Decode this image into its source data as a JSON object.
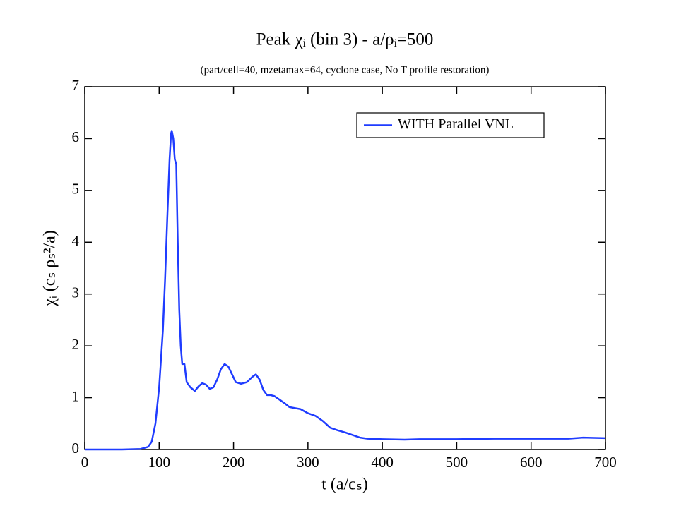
{
  "chart_data": {
    "type": "line",
    "title": "Peak χᵢ (bin 3) - a/ρᵢ=500",
    "subtitle": "(part/cell=40, mzetamax=64, cyclone case, No T profile restoration)",
    "x_label": "t (a/cₛ)",
    "y_label": "χᵢ (cₛ ρₛ²/a)",
    "x": [
      0,
      50,
      75,
      85,
      90,
      95,
      100,
      105,
      108,
      111,
      114,
      116,
      117,
      119,
      121,
      123,
      125,
      127,
      129,
      131,
      134,
      137,
      142,
      148,
      153,
      158,
      163,
      168,
      173,
      178,
      183,
      188,
      193,
      198,
      203,
      210,
      218,
      225,
      230,
      235,
      240,
      245,
      250,
      255,
      260,
      268,
      275,
      282,
      290,
      300,
      310,
      320,
      330,
      340,
      350,
      360,
      370,
      380,
      400,
      430,
      450,
      500,
      550,
      600,
      650,
      670,
      700
    ],
    "series": [
      {
        "name": "WITH Parallel VNL",
        "color": "#1f3cff",
        "values": [
          0,
          0,
          0.01,
          0.05,
          0.15,
          0.5,
          1.2,
          2.3,
          3.3,
          4.5,
          5.6,
          6.1,
          6.15,
          6.0,
          5.6,
          5.5,
          4.0,
          2.7,
          2.0,
          1.65,
          1.65,
          1.3,
          1.2,
          1.13,
          1.22,
          1.28,
          1.25,
          1.17,
          1.2,
          1.35,
          1.55,
          1.65,
          1.6,
          1.45,
          1.3,
          1.27,
          1.3,
          1.4,
          1.45,
          1.35,
          1.15,
          1.05,
          1.05,
          1.03,
          0.98,
          0.9,
          0.82,
          0.8,
          0.78,
          0.7,
          0.65,
          0.55,
          0.42,
          0.37,
          0.33,
          0.28,
          0.23,
          0.21,
          0.2,
          0.19,
          0.2,
          0.2,
          0.21,
          0.21,
          0.21,
          0.23,
          0.22
        ]
      }
    ],
    "xlim": [
      0,
      700
    ],
    "xticks": [
      0,
      100,
      200,
      300,
      400,
      500,
      600,
      700
    ],
    "ylim": [
      0,
      7
    ],
    "yticks": [
      0,
      1,
      2,
      3,
      4,
      5,
      6,
      7
    ],
    "grid": false,
    "legend": "upper right"
  }
}
